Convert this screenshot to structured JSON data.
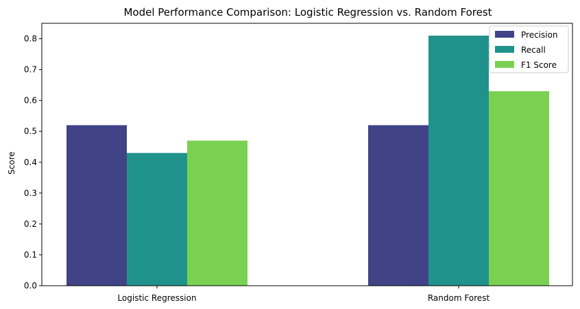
{
  "chart_data": {
    "type": "bar",
    "title": "Model Performance Comparison: Logistic Regression vs. Random Forest",
    "xlabel": "",
    "ylabel": "Score",
    "categories": [
      "Logistic Regression",
      "Random Forest"
    ],
    "series": [
      {
        "name": "Precision",
        "color": "#404386",
        "values": [
          0.52,
          0.52
        ]
      },
      {
        "name": "Recall",
        "color": "#20928c",
        "values": [
          0.43,
          0.81
        ]
      },
      {
        "name": "F1 Score",
        "color": "#7ad151",
        "values": [
          0.47,
          0.63
        ]
      }
    ],
    "ylim": [
      0,
      0.85
    ],
    "yticks": [
      "0.0",
      "0.1",
      "0.2",
      "0.3",
      "0.4",
      "0.5",
      "0.6",
      "0.7",
      "0.8"
    ],
    "grid": false,
    "legend_position": "top-right"
  }
}
